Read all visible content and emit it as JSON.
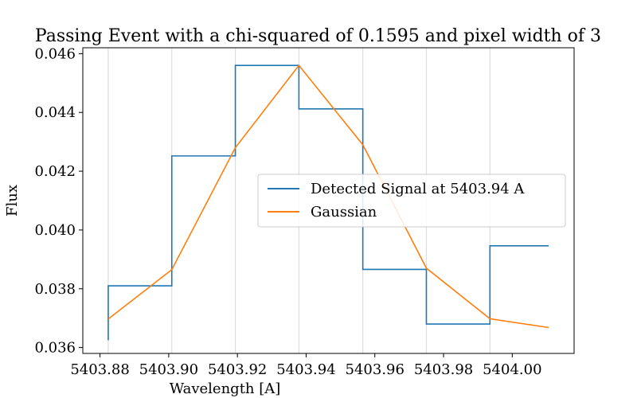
{
  "chart_data": {
    "type": "line",
    "title": "Passing Event with a chi-squared of 0.1595 and pixel width of 3",
    "xlabel": "Wavelength [A]",
    "ylabel": "Flux",
    "xlim": [
      5403.875,
      5404.018
    ],
    "ylim": [
      0.0358,
      0.0462
    ],
    "xticks": [
      5403.88,
      5403.9,
      5403.92,
      5403.94,
      5403.96,
      5403.98,
      5404.0
    ],
    "xtick_labels": [
      "5403.88",
      "5403.90",
      "5403.92",
      "5403.94",
      "5403.96",
      "5403.98",
      "5404.00"
    ],
    "yticks": [
      0.036,
      0.038,
      0.04,
      0.042,
      0.044,
      0.046
    ],
    "ytick_labels": [
      "0.036",
      "0.038",
      "0.040",
      "0.042",
      "0.044",
      "0.046"
    ],
    "vlines": [
      5403.8824,
      5403.9009,
      5403.9194,
      5403.9379,
      5403.9565,
      5403.975,
      5403.9935
    ],
    "grid": false,
    "legend": {
      "position": "center-right"
    },
    "series": [
      {
        "name": "Detected Signal at 5403.94 A",
        "color": "#1f77b4",
        "style": "step",
        "points": [
          [
            5403.8824,
            0.03625
          ],
          [
            5403.8824,
            0.0381
          ],
          [
            5403.9009,
            0.0381
          ],
          [
            5403.9009,
            0.04252
          ],
          [
            5403.9194,
            0.04252
          ],
          [
            5403.9194,
            0.0456
          ],
          [
            5403.9379,
            0.0456
          ],
          [
            5403.9379,
            0.04412
          ],
          [
            5403.9565,
            0.04412
          ],
          [
            5403.9565,
            0.03866
          ],
          [
            5403.975,
            0.03866
          ],
          [
            5403.975,
            0.0368
          ],
          [
            5403.9935,
            0.0368
          ],
          [
            5403.9935,
            0.03946
          ],
          [
            5404.0106,
            0.03946
          ]
        ]
      },
      {
        "name": "Gaussian",
        "color": "#ff7f0e",
        "style": "line",
        "points": [
          [
            5403.8824,
            0.03697
          ],
          [
            5403.9009,
            0.03865
          ],
          [
            5403.9194,
            0.0428
          ],
          [
            5403.9379,
            0.0456
          ],
          [
            5403.9565,
            0.0429
          ],
          [
            5403.975,
            0.0387
          ],
          [
            5403.9935,
            0.03698
          ],
          [
            5404.0106,
            0.03668
          ]
        ]
      }
    ]
  }
}
